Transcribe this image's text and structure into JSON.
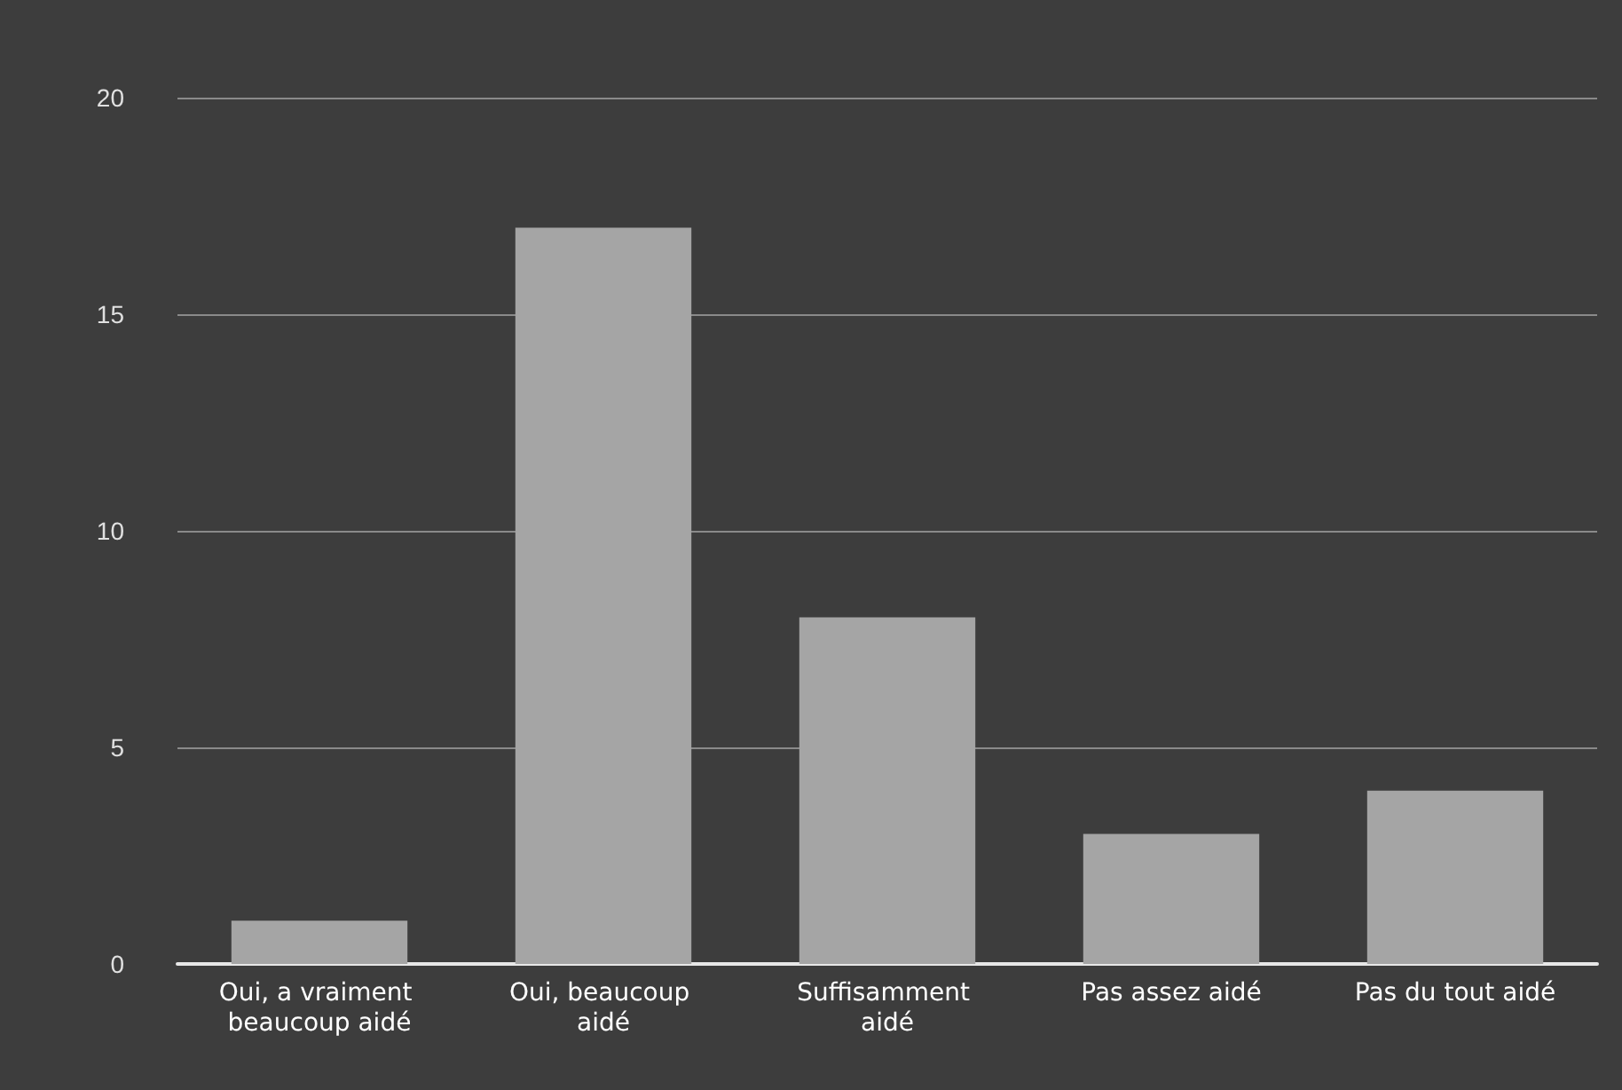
{
  "chart_data": {
    "type": "bar",
    "categories": [
      "Oui, a vraiment beaucoup aidé",
      "Oui, beaucoup aidé",
      "Suffisamment aidé",
      "Pas assez aidé",
      "Pas du tout aidé"
    ],
    "values": [
      1,
      17,
      8,
      3,
      4
    ],
    "color": "#a5a5a5",
    "ylim": [
      0,
      20
    ],
    "yticks": [
      0,
      5,
      10,
      15,
      20
    ],
    "grid": "y"
  }
}
